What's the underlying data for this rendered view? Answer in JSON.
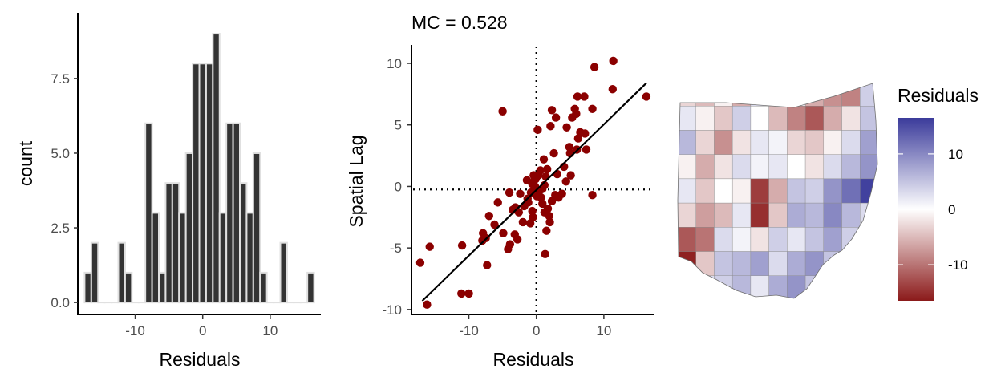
{
  "chart_data": [
    {
      "type": "bar",
      "subtype": "histogram",
      "title": "",
      "xlabel": "Residuals",
      "ylabel": "count",
      "xlim": [
        -18.5,
        17.5
      ],
      "ylim": [
        -0.4,
        9.7
      ],
      "x_ticks": [
        {
          "value": -10,
          "label": "-10"
        },
        {
          "value": 0,
          "label": "0"
        },
        {
          "value": 10,
          "label": "10"
        }
      ],
      "y_ticks": [
        {
          "value": 0,
          "label": "0.0"
        },
        {
          "value": 2.5,
          "label": "2.5"
        },
        {
          "value": 5,
          "label": "5.0"
        },
        {
          "value": 7.5,
          "label": "7.5"
        }
      ],
      "bin_width": 1,
      "bar_fill": "#333333",
      "bar_outline": "#e0e0e0",
      "bins": [
        {
          "center": -17,
          "count": 1
        },
        {
          "center": -16,
          "count": 2
        },
        {
          "center": -15,
          "count": 0
        },
        {
          "center": -14,
          "count": 0
        },
        {
          "center": -13,
          "count": 0
        },
        {
          "center": -12,
          "count": 2
        },
        {
          "center": -11,
          "count": 1
        },
        {
          "center": -10,
          "count": 0
        },
        {
          "center": -9,
          "count": 0
        },
        {
          "center": -8,
          "count": 6
        },
        {
          "center": -7,
          "count": 3
        },
        {
          "center": -6,
          "count": 1
        },
        {
          "center": -5,
          "count": 4
        },
        {
          "center": -4,
          "count": 4
        },
        {
          "center": -3,
          "count": 3
        },
        {
          "center": -2,
          "count": 5
        },
        {
          "center": -1,
          "count": 8
        },
        {
          "center": 0,
          "count": 8
        },
        {
          "center": 1,
          "count": 8
        },
        {
          "center": 2,
          "count": 9
        },
        {
          "center": 3,
          "count": 3
        },
        {
          "center": 4,
          "count": 6
        },
        {
          "center": 5,
          "count": 6
        },
        {
          "center": 6,
          "count": 4
        },
        {
          "center": 7,
          "count": 3
        },
        {
          "center": 8,
          "count": 5
        },
        {
          "center": 9,
          "count": 1
        },
        {
          "center": 10,
          "count": 0
        },
        {
          "center": 11,
          "count": 0
        },
        {
          "center": 12,
          "count": 2
        },
        {
          "center": 13,
          "count": 0
        },
        {
          "center": 14,
          "count": 0
        },
        {
          "center": 15,
          "count": 0
        },
        {
          "center": 16,
          "count": 1
        }
      ]
    },
    {
      "type": "scatter",
      "title": "MC = 0.528",
      "xlabel": "Residuals",
      "ylabel": "Spatial Lag",
      "xlim": [
        -18.5,
        17.5
      ],
      "ylim": [
        -10.4,
        11.5
      ],
      "x_ticks": [
        {
          "value": -10,
          "label": "-10"
        },
        {
          "value": 0,
          "label": "0"
        },
        {
          "value": 10,
          "label": "10"
        }
      ],
      "y_ticks": [
        {
          "value": -10,
          "label": "-10"
        },
        {
          "value": -5,
          "label": "-5"
        },
        {
          "value": 0,
          "label": "0"
        },
        {
          "value": 5,
          "label": "5"
        },
        {
          "value": 10,
          "label": "10"
        }
      ],
      "point_color": "#8b0000",
      "reference_lines": {
        "vertical_x": 0,
        "horizontal_y": -0.25,
        "style": "dotted"
      },
      "fit_line": {
        "x": [
          -16.9,
          16.3
        ],
        "y": [
          -9.3,
          8.4
        ]
      },
      "points": [
        [
          -16.2,
          -9.6
        ],
        [
          -17.2,
          -6.2
        ],
        [
          -15.8,
          -4.9
        ],
        [
          -11.0,
          -4.8
        ],
        [
          -11.1,
          -8.7
        ],
        [
          -10.0,
          -8.7
        ],
        [
          -7.9,
          -3.8
        ],
        [
          -8.0,
          -4.4
        ],
        [
          -7.5,
          -4.2
        ],
        [
          -7.3,
          -6.4
        ],
        [
          -7.0,
          -2.4
        ],
        [
          -6.2,
          -3.1
        ],
        [
          -5.7,
          -1.3
        ],
        [
          -4.9,
          -3.8
        ],
        [
          -4.2,
          -5.1
        ],
        [
          -3.9,
          -4.7
        ],
        [
          -3.2,
          -3.9
        ],
        [
          -2.8,
          -4.3
        ],
        [
          -4.0,
          -0.5
        ],
        [
          -3.5,
          -1.9
        ],
        [
          -2.6,
          -2.1
        ],
        [
          -2.0,
          -2.9
        ],
        [
          -1.8,
          -1.6
        ],
        [
          -1.3,
          -1.0
        ],
        [
          -0.9,
          -3.0
        ],
        [
          -0.5,
          -2.5
        ],
        [
          -0.2,
          0.0
        ],
        [
          0.1,
          -0.8
        ],
        [
          0.4,
          -0.4
        ],
        [
          0.9,
          -1.4
        ],
        [
          1.2,
          -2.1
        ],
        [
          1.5,
          -3.6
        ],
        [
          1.3,
          -5.5
        ],
        [
          2.0,
          -2.9
        ],
        [
          1.7,
          -1.8
        ],
        [
          2.3,
          -1.2
        ],
        [
          2.8,
          -0.7
        ],
        [
          3.3,
          -0.9
        ],
        [
          3.8,
          -0.6
        ],
        [
          1.2,
          0.1
        ],
        [
          1.4,
          0.8
        ],
        [
          0.6,
          1.3
        ],
        [
          0.9,
          -0.2
        ],
        [
          -0.4,
          0.9
        ],
        [
          -0.1,
          0.6
        ],
        [
          -0.2,
          0.6
        ],
        [
          0.3,
          0.9
        ],
        [
          -0.6,
          0.2
        ],
        [
          -1.4,
          0.5
        ],
        [
          -0.8,
          -0.5
        ],
        [
          -1.2,
          -1.3
        ],
        [
          1.6,
          1.4
        ],
        [
          2.6,
          2.7
        ],
        [
          1.1,
          2.2
        ],
        [
          2.1,
          4.9
        ],
        [
          0.2,
          4.6
        ],
        [
          2.3,
          6.2
        ],
        [
          4.1,
          1.6
        ],
        [
          4.4,
          0.4
        ],
        [
          5.1,
          0.9
        ],
        [
          5.0,
          2.7
        ],
        [
          4.9,
          3.2
        ],
        [
          4.5,
          4.8
        ],
        [
          5.3,
          5.6
        ],
        [
          6.0,
          3.0
        ],
        [
          6.2,
          3.9
        ],
        [
          5.7,
          6.3
        ],
        [
          5.9,
          5.9
        ],
        [
          6.5,
          4.4
        ],
        [
          7.4,
          3.0
        ],
        [
          7.2,
          4.3
        ],
        [
          8.3,
          6.3
        ],
        [
          8.6,
          9.7
        ],
        [
          11.4,
          10.2
        ],
        [
          11.3,
          7.9
        ],
        [
          16.3,
          7.3
        ],
        [
          8.3,
          -0.7
        ],
        [
          -5.0,
          6.1
        ],
        [
          3.1,
          1.0
        ],
        [
          -0.6,
          -2.0
        ],
        [
          0.7,
          -0.9
        ],
        [
          2.9,
          5.6
        ],
        [
          6.1,
          7.3
        ],
        [
          7.1,
          7.3
        ],
        [
          -3.1,
          -1.7
        ],
        [
          1.9,
          -2.4
        ],
        [
          -2.4,
          -0.6
        ]
      ]
    },
    {
      "type": "heatmap",
      "subtype": "choropleth",
      "title": "",
      "region": "Ohio counties",
      "legend": {
        "title": "Residuals",
        "placement": "right",
        "ticks": [
          {
            "value": 10,
            "label": "10"
          },
          {
            "value": 0,
            "label": "0"
          },
          {
            "value": -10,
            "label": "-10"
          }
        ],
        "range": [
          -16.5,
          16.5
        ],
        "colors": {
          "low": "#8b1a1a",
          "mid": "#ffffff",
          "high": "#3b3b9b"
        }
      },
      "grid_columns": 11,
      "county_values": [
        [
          -3,
          -5,
          -1,
          -6,
          3,
          2,
          1,
          -6,
          -8,
          -9,
          4
        ],
        [
          2,
          -1,
          -4,
          4,
          0,
          -5,
          -9,
          -12,
          -6,
          -2,
          5
        ],
        [
          6,
          -3,
          -8,
          -2,
          2,
          1,
          -3,
          -4,
          -1,
          3,
          8
        ],
        [
          -1,
          -6,
          -2,
          3,
          1,
          2,
          0,
          -2,
          3,
          6,
          9
        ],
        [
          2,
          -4,
          0,
          -1,
          -14,
          -6,
          5,
          4,
          9,
          12,
          16
        ],
        [
          -3,
          -7,
          -5,
          2,
          -15,
          -4,
          7,
          6,
          10,
          6,
          3
        ],
        [
          -12,
          -10,
          3,
          1,
          -2,
          4,
          2,
          5,
          8,
          4,
          -5
        ],
        [
          -16,
          -4,
          5,
          6,
          8,
          3,
          7,
          9,
          5,
          -3,
          0
        ],
        [
          -9,
          3,
          4,
          6,
          2,
          7,
          9,
          5,
          4,
          0,
          0
        ]
      ]
    }
  ]
}
